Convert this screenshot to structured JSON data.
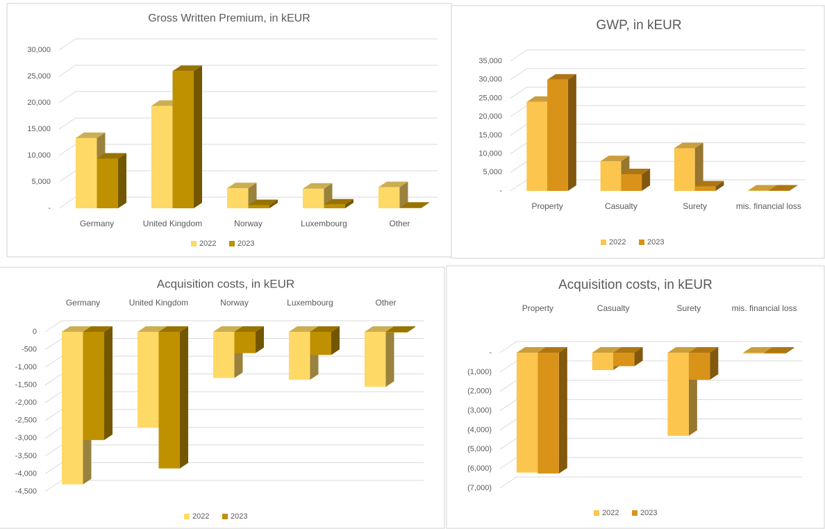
{
  "chart_data": [
    {
      "type": "bar3d",
      "title": "Gross Written Premium, in kEUR",
      "categories": [
        "Germany",
        "United Kingdom",
        "Norway",
        "Luxembourg",
        "Other"
      ],
      "series": [
        {
          "name": "2022",
          "color": "#ffd966",
          "values": [
            13300,
            19400,
            3800,
            3700,
            4000
          ]
        },
        {
          "name": "2023",
          "color": "#bf9000",
          "values": [
            9400,
            26000,
            600,
            700,
            100
          ]
        }
      ],
      "ylim": [
        0,
        30000
      ],
      "yticks": [
        {
          "value": 0,
          "label": "-"
        },
        {
          "value": 5000,
          "label": "5,000"
        },
        {
          "value": 10000,
          "label": "10,000"
        },
        {
          "value": 15000,
          "label": "15,000"
        },
        {
          "value": 20000,
          "label": "20,000"
        },
        {
          "value": 25000,
          "label": "25,000"
        },
        {
          "value": 30000,
          "label": "30,000"
        }
      ],
      "grid": true
    },
    {
      "type": "bar3d",
      "title": "GWP, in kEUR",
      "categories": [
        "Property",
        "Casualty",
        "Surety",
        "mis. financial loss"
      ],
      "series": [
        {
          "name": "2022",
          "color": "#fcc54e",
          "values": [
            24000,
            8000,
            11500,
            100
          ]
        },
        {
          "name": "2023",
          "color": "#d99318",
          "values": [
            30000,
            4500,
            1200,
            100
          ]
        }
      ],
      "ylim": [
        0,
        35000
      ],
      "yticks": [
        {
          "value": 0,
          "label": "-"
        },
        {
          "value": 5000,
          "label": "5,000"
        },
        {
          "value": 10000,
          "label": "10,000"
        },
        {
          "value": 15000,
          "label": "15,000"
        },
        {
          "value": 20000,
          "label": "20,000"
        },
        {
          "value": 25000,
          "label": "25,000"
        },
        {
          "value": 30000,
          "label": "30,000"
        },
        {
          "value": 35000,
          "label": "35,000"
        }
      ],
      "grid": true
    },
    {
      "type": "bar3d",
      "title": "Acquisition costs, in kEUR",
      "categories": [
        "Germany",
        "United Kingdom",
        "Norway",
        "Luxembourg",
        "Other"
      ],
      "series": [
        {
          "name": "2022",
          "color": "#ffd966",
          "values": [
            -4300,
            -2700,
            -1300,
            -1350,
            -1550
          ]
        },
        {
          "name": "2023",
          "color": "#bf9000",
          "values": [
            -3050,
            -3850,
            -600,
            -650,
            -20
          ]
        }
      ],
      "ylim": [
        -4500,
        0
      ],
      "yticks": [
        0,
        -500,
        {
          "value": -1000,
          "label": "-1,000"
        },
        {
          "value": -1500,
          "label": "-1,500"
        },
        {
          "value": -2000,
          "label": "-2,000"
        },
        {
          "value": -2500,
          "label": "-2,500"
        },
        {
          "value": -3000,
          "label": "-3,000"
        },
        {
          "value": -3500,
          "label": "-3,500"
        },
        {
          "value": -4000,
          "label": "-4,000"
        },
        {
          "value": -4500,
          "label": "-4,500"
        }
      ],
      "grid": true
    },
    {
      "type": "bar3d",
      "title": "Acquisition costs, in kEUR",
      "categories": [
        "Property",
        "Casualty",
        "Surety",
        "mis. financial loss"
      ],
      "series": [
        {
          "name": "2022",
          "color": "#fcc54e",
          "values": [
            -6200,
            -900,
            -4300,
            -50
          ]
        },
        {
          "name": "2023",
          "color": "#d99318",
          "values": [
            -6250,
            -700,
            -1400,
            -50
          ]
        }
      ],
      "ylim": [
        -7000,
        0
      ],
      "yticks": [
        {
          "value": 0,
          "label": "-"
        },
        {
          "value": -1000,
          "label": "(1,000)"
        },
        {
          "value": -2000,
          "label": "(2,000)"
        },
        {
          "value": -3000,
          "label": "(3,000)"
        },
        {
          "value": -4000,
          "label": "(4,000)"
        },
        {
          "value": -5000,
          "label": "(5,000)"
        },
        {
          "value": -6000,
          "label": "(6,000)"
        },
        {
          "value": -7000,
          "label": "(7,000)"
        }
      ],
      "grid": true
    }
  ]
}
